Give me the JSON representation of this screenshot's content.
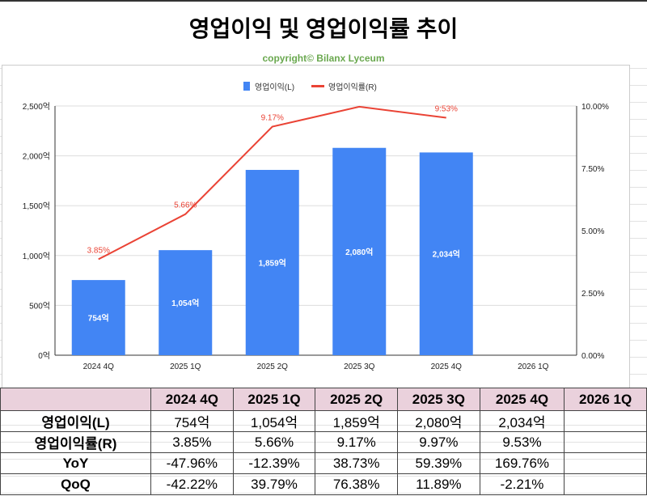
{
  "title": "영업이익 및 영업이익률 추이",
  "copyright": "copyright© Bilanx Lyceum",
  "chart_data": {
    "type": "bar+line",
    "categories": [
      "2024 4Q",
      "2025 1Q",
      "2025 2Q",
      "2025 3Q",
      "2025 4Q",
      "2026 1Q"
    ],
    "series": [
      {
        "name": "영업이익(L)",
        "type": "bar",
        "axis": "left",
        "color": "#4285f4",
        "values": [
          754,
          1054,
          1859,
          2080,
          2034,
          null
        ],
        "labels": [
          "754억",
          "1,054억",
          "1,859억",
          "2,080억",
          "2,034억",
          null
        ]
      },
      {
        "name": "영업이익률(R)",
        "type": "line",
        "axis": "right",
        "color": "#ea4335",
        "values": [
          3.85,
          5.66,
          9.17,
          9.97,
          9.53,
          null
        ],
        "labels": [
          "3.85%",
          "5.66%",
          "9.17%",
          null,
          "9:53%",
          null
        ]
      }
    ],
    "left_axis": {
      "ylim": [
        0,
        2500
      ],
      "ticks": [
        "0억",
        "500억",
        "1,000억",
        "1,500억",
        "2,000억",
        "2,500억"
      ]
    },
    "right_axis": {
      "ylim": [
        0,
        10
      ],
      "ticks": [
        "0.00%",
        "2.50%",
        "5.00%",
        "7.50%",
        "10.00%"
      ]
    },
    "legend": "top",
    "grid": true
  },
  "table": {
    "headers": [
      "",
      "2024 4Q",
      "2025 1Q",
      "2025 2Q",
      "2025 3Q",
      "2025 4Q",
      "2026 1Q"
    ],
    "rows": [
      [
        "영업이익(L)",
        "754억",
        "1,054억",
        "1,859억",
        "2,080억",
        "2,034억",
        ""
      ],
      [
        "영업이익률(R)",
        "3.85%",
        "5.66%",
        "9.17%",
        "9.97%",
        "9.53%",
        ""
      ],
      [
        "YoY",
        "-47.96%",
        "-12.39%",
        "38.73%",
        "59.39%",
        "169.76%",
        ""
      ],
      [
        "QoQ",
        "-42.22%",
        "39.79%",
        "76.38%",
        "11.89%",
        "-2.21%",
        ""
      ]
    ]
  }
}
